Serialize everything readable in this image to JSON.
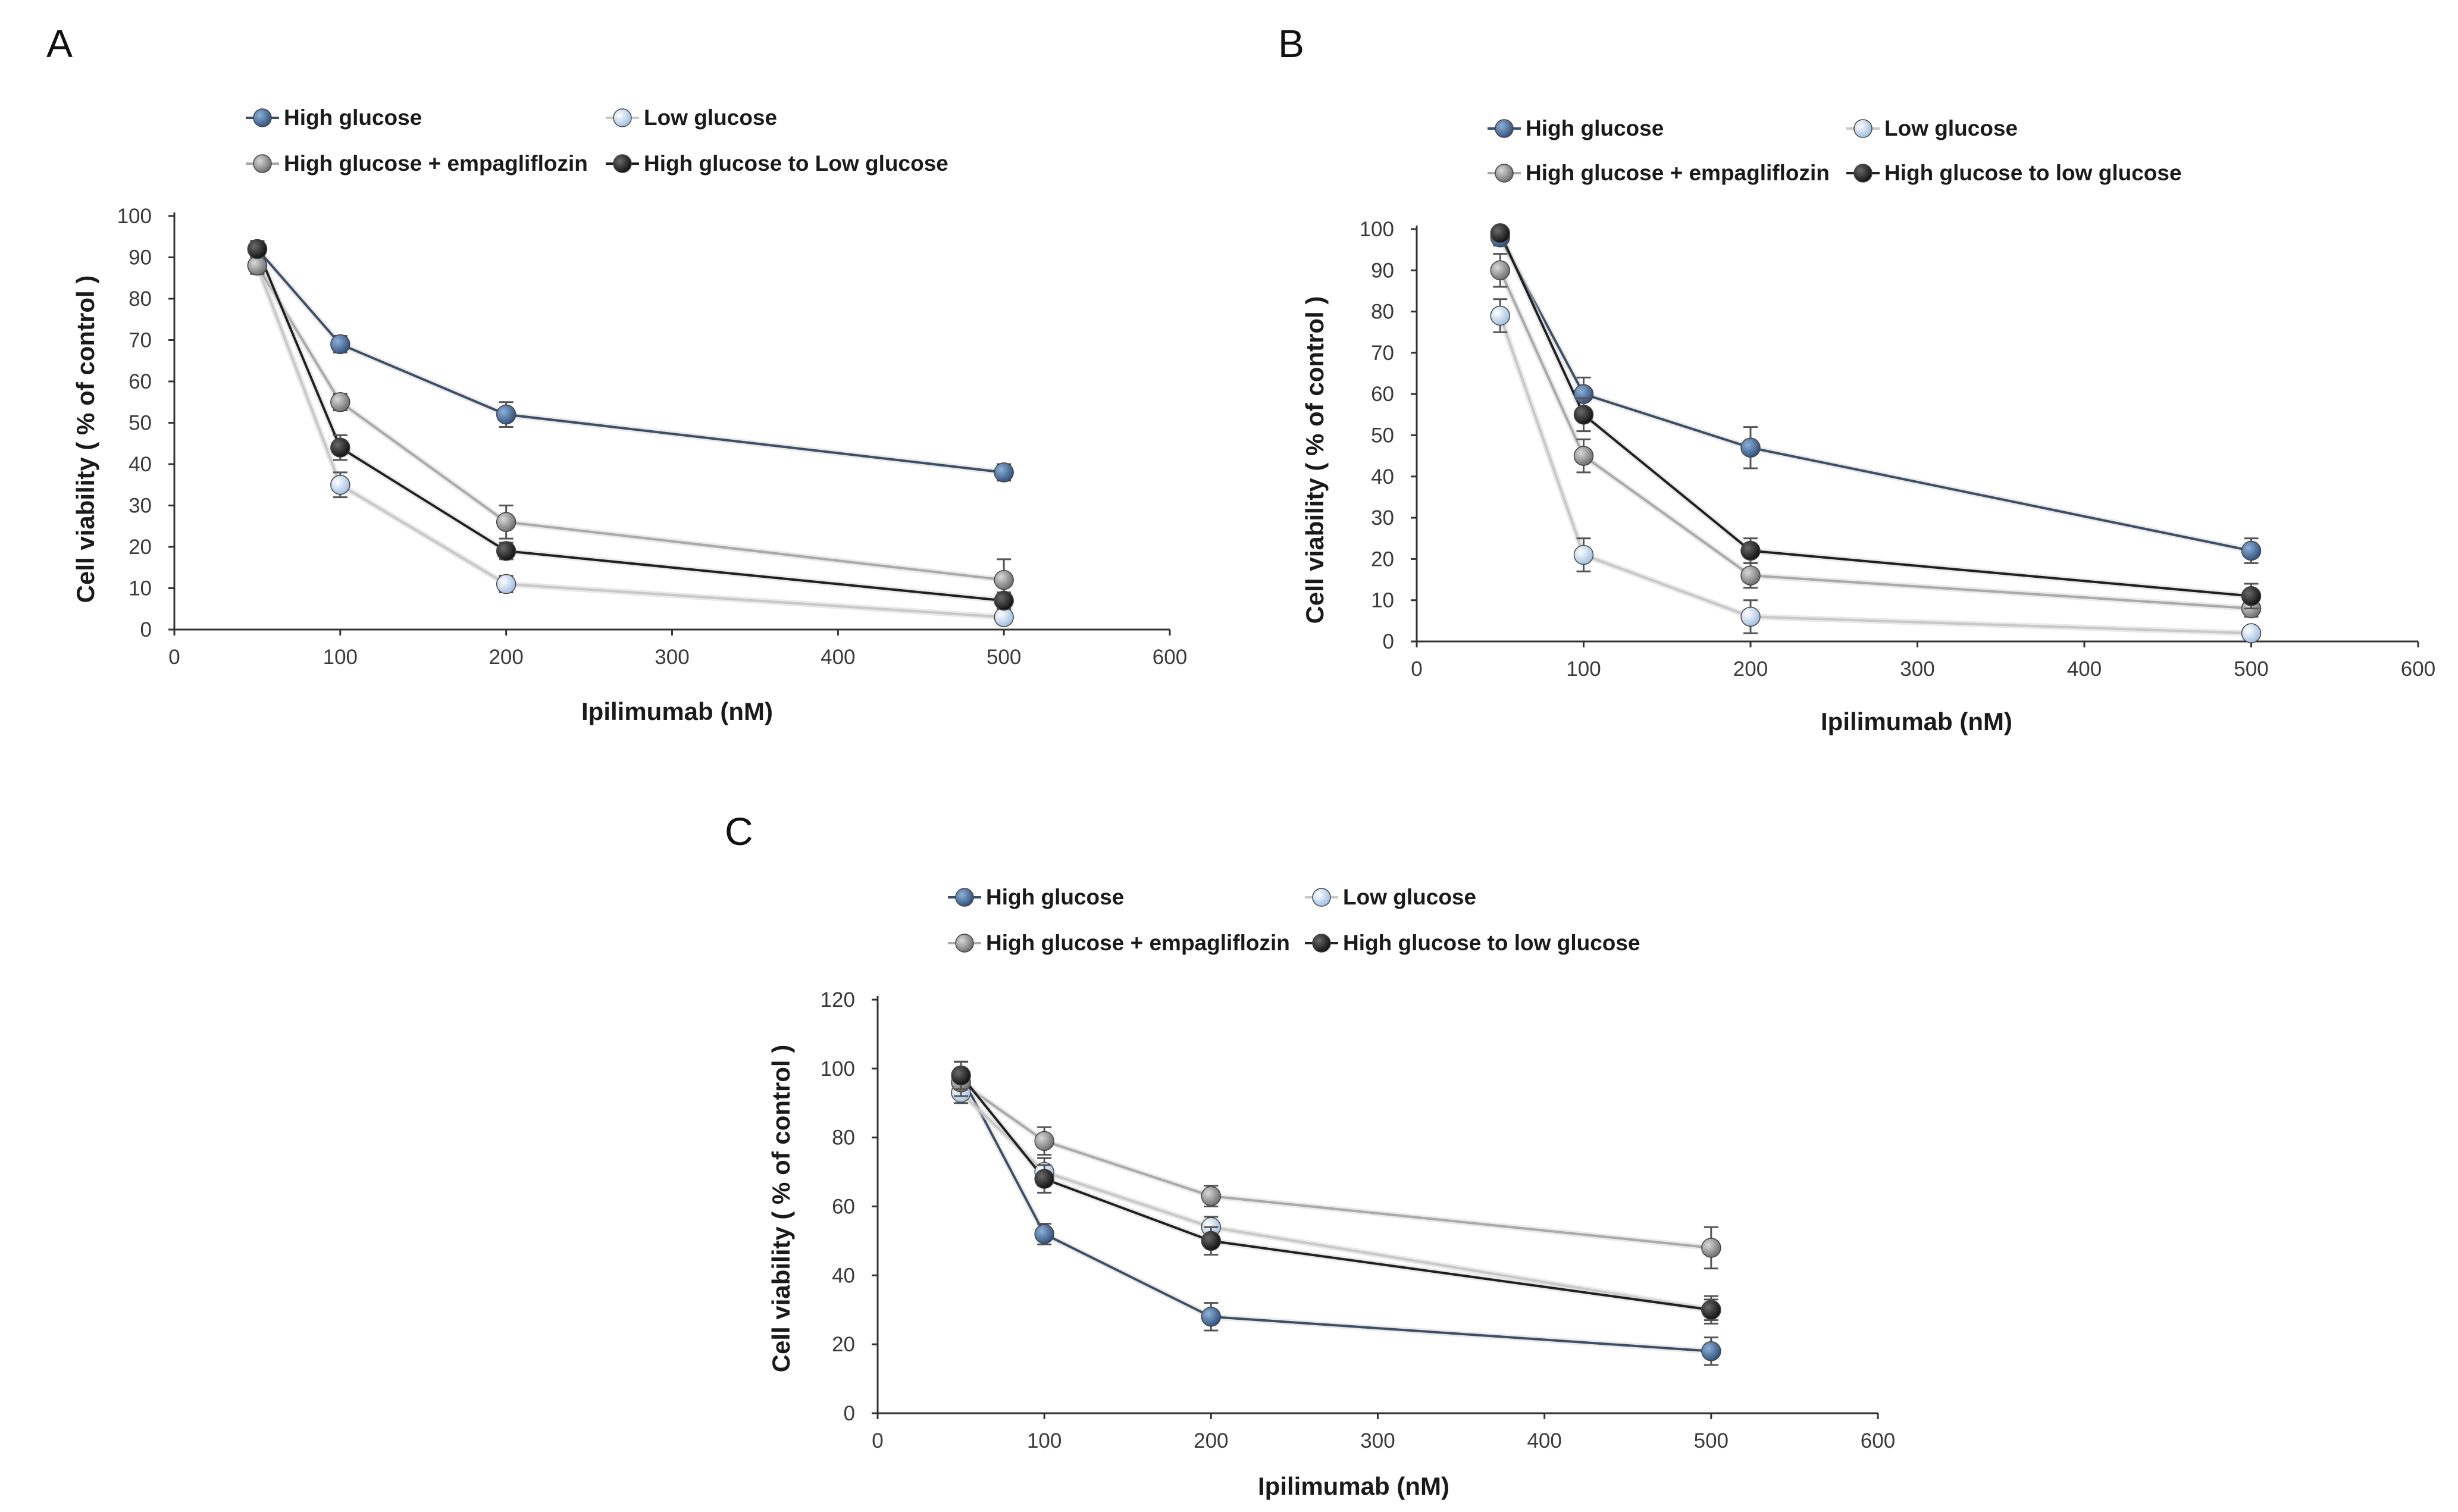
{
  "chart_data": [
    {
      "type": "line",
      "panel": "A",
      "x": [
        50,
        100,
        200,
        500
      ],
      "xlim": [
        0,
        600
      ],
      "xticks": [
        0,
        100,
        200,
        300,
        400,
        500,
        600
      ],
      "ylim": [
        0,
        100
      ],
      "yticks": [
        0,
        10,
        20,
        30,
        40,
        50,
        60,
        70,
        80,
        90,
        100
      ],
      "xlabel": "Ipilimumab (nM)",
      "ylabel": "Cell viability ( % of control )",
      "legend": [
        "High glucose",
        "Low glucose",
        "High glucose + empagliflozin",
        "High glucose to Low glucose"
      ],
      "series": [
        {
          "name": "High glucose",
          "color": "#2e4f7c",
          "values": [
            92,
            69,
            52,
            38
          ],
          "errors": [
            2,
            2,
            3,
            2
          ]
        },
        {
          "name": "Low glucose",
          "color": "#a8c4e0",
          "values": [
            88,
            35,
            11,
            3
          ],
          "errors": [
            2,
            3,
            2,
            1
          ]
        },
        {
          "name": "High glucose + empagliflozin",
          "color": "#7f7f7f",
          "values": [
            88,
            55,
            26,
            12
          ],
          "errors": [
            2,
            2,
            4,
            5
          ]
        },
        {
          "name": "High glucose to Low glucose",
          "color": "#1a1a1a",
          "values": [
            92,
            44,
            19,
            7
          ],
          "errors": [
            2,
            3,
            2,
            2
          ]
        }
      ]
    },
    {
      "type": "line",
      "panel": "B",
      "x": [
        50,
        100,
        200,
        500
      ],
      "xlim": [
        0,
        600
      ],
      "xticks": [
        0,
        100,
        200,
        300,
        400,
        500,
        600
      ],
      "ylim": [
        0,
        100
      ],
      "yticks": [
        0,
        10,
        20,
        30,
        40,
        50,
        60,
        70,
        80,
        90,
        100
      ],
      "xlabel": "Ipilimumab (nM)",
      "ylabel": "Cell viability ( % of control )",
      "legend": [
        "High glucose",
        "Low glucose",
        "High glucose + empagliflozin",
        "High glucose to low glucose"
      ],
      "series": [
        {
          "name": "High glucose",
          "color": "#2e4f7c",
          "values": [
            98,
            60,
            47,
            22
          ],
          "errors": [
            2,
            4,
            5,
            3
          ]
        },
        {
          "name": "Low glucose",
          "color": "#a8c4e0",
          "values": [
            79,
            21,
            6,
            2
          ],
          "errors": [
            4,
            4,
            4,
            1
          ]
        },
        {
          "name": "High glucose + empagliflozin",
          "color": "#7f7f7f",
          "values": [
            90,
            45,
            16,
            8
          ],
          "errors": [
            4,
            4,
            3,
            2
          ]
        },
        {
          "name": "High glucose to low glucose",
          "color": "#1a1a1a",
          "values": [
            99,
            55,
            22,
            11
          ],
          "errors": [
            1,
            4,
            3,
            3
          ]
        }
      ]
    },
    {
      "type": "line",
      "panel": "C",
      "x": [
        50,
        100,
        200,
        500
      ],
      "xlim": [
        0,
        600
      ],
      "xticks": [
        0,
        100,
        200,
        300,
        400,
        500,
        600
      ],
      "ylim": [
        0,
        120
      ],
      "yticks": [
        0,
        20,
        40,
        60,
        80,
        100,
        120
      ],
      "xlabel": "Ipilimumab (nM)",
      "ylabel": "Cell viability ( % of control )",
      "legend": [
        "High glucose",
        "Low glucose",
        "High glucose + empagliflozin",
        "High glucose to low glucose"
      ],
      "series": [
        {
          "name": "High glucose",
          "color": "#2e4f7c",
          "values": [
            98,
            52,
            28,
            18
          ],
          "errors": [
            4,
            3,
            4,
            4
          ]
        },
        {
          "name": "Low glucose",
          "color": "#a8c4e0",
          "values": [
            93,
            70,
            54,
            30
          ],
          "errors": [
            3,
            4,
            3,
            3
          ]
        },
        {
          "name": "High glucose + empagliflozin",
          "color": "#7f7f7f",
          "values": [
            96,
            79,
            63,
            48
          ],
          "errors": [
            4,
            4,
            3,
            6
          ]
        },
        {
          "name": "High glucose to low glucose",
          "color": "#1a1a1a",
          "values": [
            98,
            68,
            50,
            30
          ],
          "errors": [
            4,
            4,
            4,
            4
          ]
        }
      ]
    }
  ]
}
